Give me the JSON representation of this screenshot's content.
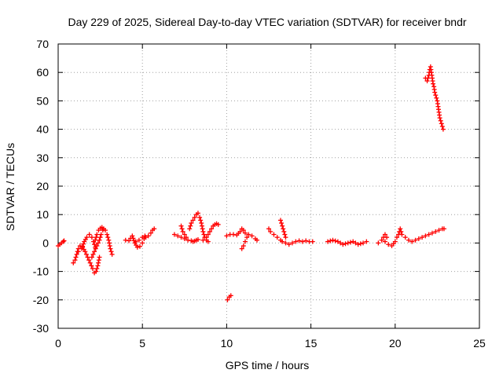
{
  "chart_data": {
    "type": "scatter",
    "title": "Day 229 of 2025, Sidereal Day-to-day VTEC variation (SDTVAR) for receiver bndr",
    "xlabel": "GPS time / hours",
    "ylabel": "SDTVAR / TECUs",
    "xlim": [
      0,
      25
    ],
    "ylim": [
      -30,
      70
    ],
    "xticks": [
      0,
      5,
      10,
      15,
      20,
      25
    ],
    "yticks": [
      -30,
      -20,
      -10,
      0,
      10,
      20,
      30,
      40,
      50,
      60,
      70
    ],
    "grid": true,
    "marker": "+",
    "color": "#ff0000",
    "series": [
      {
        "name": "bndr",
        "segments": [
          [
            [
              0.0,
              -1.0
            ],
            [
              0.1,
              -0.5
            ],
            [
              0.2,
              0.0
            ],
            [
              0.3,
              0.5
            ],
            [
              0.35,
              0.8
            ]
          ],
          [
            [
              0.9,
              -7
            ],
            [
              1.0,
              -6
            ],
            [
              1.1,
              -4
            ],
            [
              1.2,
              -2
            ],
            [
              1.3,
              -1
            ],
            [
              1.45,
              -1.5
            ],
            [
              1.6,
              -3
            ],
            [
              1.75,
              -5
            ],
            [
              1.9,
              -7
            ],
            [
              2.05,
              -9
            ],
            [
              2.15,
              -10.5
            ],
            [
              2.25,
              -10
            ],
            [
              2.35,
              -8
            ],
            [
              2.45,
              -5
            ]
          ],
          [
            [
              1.2,
              -3
            ],
            [
              1.4,
              -2
            ],
            [
              1.55,
              0.5
            ],
            [
              1.7,
              2
            ],
            [
              1.85,
              3
            ],
            [
              2.0,
              2
            ],
            [
              2.1,
              0.5
            ],
            [
              2.2,
              -1.5
            ]
          ],
          [
            [
              2.2,
              1
            ],
            [
              2.3,
              3
            ],
            [
              2.4,
              4.5
            ],
            [
              2.5,
              5.2
            ],
            [
              2.6,
              5.5
            ],
            [
              2.7,
              5
            ],
            [
              2.8,
              4.5
            ],
            [
              2.9,
              3
            ],
            [
              3.0,
              1
            ],
            [
              3.1,
              -2
            ],
            [
              3.2,
              -4
            ]
          ],
          [
            [
              2.0,
              -5
            ],
            [
              2.15,
              -3
            ],
            [
              2.3,
              -1
            ],
            [
              2.45,
              1
            ],
            [
              2.55,
              3
            ],
            [
              2.65,
              4.5
            ]
          ],
          [
            [
              4.0,
              1
            ],
            [
              4.2,
              0.8
            ],
            [
              4.4,
              2.5
            ],
            [
              4.55,
              0
            ],
            [
              4.7,
              -1.5
            ],
            [
              4.85,
              -1.2
            ],
            [
              5.0,
              0
            ],
            [
              5.1,
              1.5
            ],
            [
              5.2,
              2
            ],
            [
              5.35,
              2.5
            ],
            [
              5.5,
              3.5
            ],
            [
              5.6,
              4.5
            ],
            [
              5.7,
              5
            ]
          ],
          [
            [
              4.6,
              0.5
            ],
            [
              4.8,
              1
            ],
            [
              5.0,
              2
            ],
            [
              5.15,
              2.5
            ]
          ],
          [
            [
              6.9,
              3
            ],
            [
              7.1,
              2.5
            ],
            [
              7.3,
              2
            ],
            [
              7.5,
              1.5
            ],
            [
              7.7,
              1
            ],
            [
              7.9,
              0.8
            ],
            [
              8.0,
              0.5
            ],
            [
              8.1,
              0.7
            ],
            [
              8.2,
              1
            ],
            [
              8.3,
              1.2
            ]
          ],
          [
            [
              7.3,
              6
            ],
            [
              7.4,
              4
            ],
            [
              7.5,
              3
            ],
            [
              7.6,
              2
            ]
          ],
          [
            [
              7.8,
              5
            ],
            [
              7.9,
              7
            ],
            [
              8.0,
              8
            ],
            [
              8.1,
              9
            ],
            [
              8.2,
              10
            ],
            [
              8.3,
              10.5
            ],
            [
              8.4,
              9
            ],
            [
              8.5,
              7
            ],
            [
              8.6,
              4
            ],
            [
              8.7,
              2
            ],
            [
              8.8,
              1
            ],
            [
              8.9,
              0.5
            ]
          ],
          [
            [
              8.6,
              1
            ],
            [
              8.8,
              2
            ],
            [
              9.0,
              4
            ],
            [
              9.1,
              5
            ],
            [
              9.2,
              6
            ],
            [
              9.3,
              6.5
            ],
            [
              9.4,
              6.8
            ],
            [
              9.5,
              6.5
            ]
          ],
          [
            [
              10.0,
              2.5
            ],
            [
              10.2,
              3
            ],
            [
              10.4,
              3
            ],
            [
              10.6,
              2.8
            ],
            [
              10.8,
              4
            ],
            [
              10.9,
              5
            ],
            [
              11.0,
              4.5
            ],
            [
              11.1,
              3.5
            ],
            [
              11.3,
              3
            ],
            [
              11.5,
              2.5
            ],
            [
              11.7,
              1.5
            ],
            [
              11.8,
              1
            ]
          ],
          [
            [
              10.9,
              -2
            ],
            [
              11.0,
              -1
            ],
            [
              11.1,
              0.5
            ],
            [
              11.2,
              2
            ]
          ],
          [
            [
              10.05,
              -20
            ],
            [
              10.15,
              -19
            ],
            [
              10.25,
              -18.5
            ]
          ],
          [
            [
              12.5,
              5
            ],
            [
              12.6,
              4
            ],
            [
              12.8,
              3
            ],
            [
              13.0,
              2
            ],
            [
              13.2,
              1
            ],
            [
              13.3,
              0.5
            ],
            [
              13.5,
              0
            ],
            [
              13.7,
              -0.5
            ],
            [
              13.9,
              0
            ],
            [
              14.1,
              0.5
            ],
            [
              14.3,
              0.8
            ],
            [
              14.5,
              0.5
            ],
            [
              14.7,
              0.8
            ],
            [
              14.9,
              0.5
            ],
            [
              15.1,
              0.5
            ]
          ],
          [
            [
              13.2,
              8
            ],
            [
              13.3,
              6
            ],
            [
              13.4,
              4
            ],
            [
              13.5,
              2
            ]
          ],
          [
            [
              16.0,
              0.5
            ],
            [
              16.3,
              1
            ],
            [
              16.6,
              0.5
            ],
            [
              16.9,
              -0.5
            ],
            [
              17.2,
              0
            ],
            [
              17.5,
              0.5
            ],
            [
              17.8,
              -0.5
            ],
            [
              18.1,
              0
            ],
            [
              18.3,
              0.5
            ]
          ],
          [
            [
              19.0,
              0
            ],
            [
              19.2,
              1
            ],
            [
              19.4,
              0.5
            ],
            [
              19.6,
              -0.5
            ],
            [
              19.8,
              -1
            ],
            [
              20.0,
              0.5
            ],
            [
              20.1,
              2
            ],
            [
              20.2,
              3
            ],
            [
              20.3,
              5
            ],
            [
              20.4,
              3
            ],
            [
              20.6,
              2
            ],
            [
              20.8,
              1
            ],
            [
              21.0,
              0.5
            ],
            [
              21.2,
              1
            ],
            [
              21.4,
              1.5
            ],
            [
              21.6,
              2
            ],
            [
              21.8,
              2.5
            ],
            [
              22.0,
              3
            ],
            [
              22.2,
              3.5
            ],
            [
              22.4,
              4
            ],
            [
              22.6,
              4.5
            ],
            [
              22.8,
              5
            ],
            [
              22.9,
              5
            ]
          ],
          [
            [
              19.3,
              2
            ],
            [
              19.4,
              3
            ],
            [
              19.5,
              2
            ]
          ],
          [
            [
              21.8,
              58
            ],
            [
              21.9,
              57
            ],
            [
              22.0,
              59
            ],
            [
              22.05,
              61
            ],
            [
              22.1,
              62
            ],
            [
              22.15,
              60
            ],
            [
              22.2,
              58
            ],
            [
              22.25,
              56
            ],
            [
              22.3,
              55
            ],
            [
              22.35,
              53
            ],
            [
              22.45,
              51
            ],
            [
              22.5,
              50
            ],
            [
              22.55,
              48
            ],
            [
              22.6,
              46
            ],
            [
              22.65,
              44
            ],
            [
              22.7,
              43
            ],
            [
              22.75,
              42
            ],
            [
              22.8,
              41
            ],
            [
              22.85,
              40
            ]
          ]
        ]
      }
    ]
  }
}
